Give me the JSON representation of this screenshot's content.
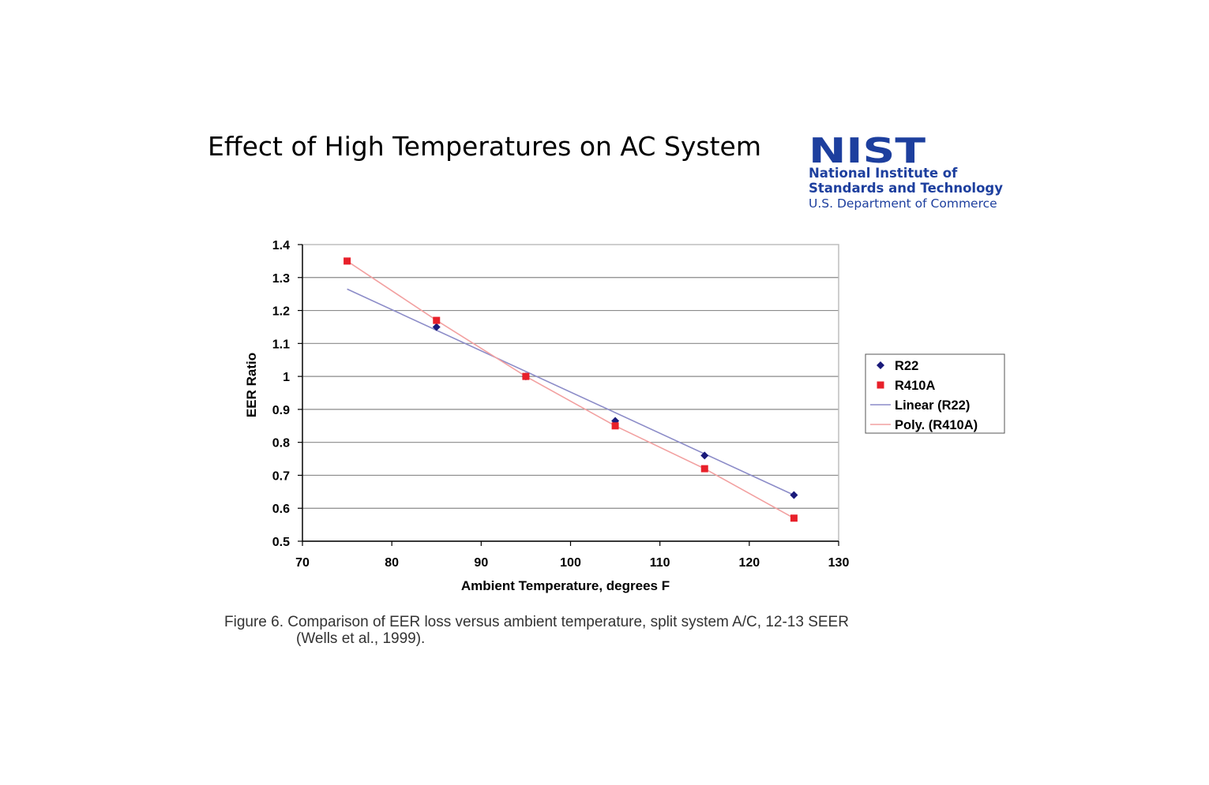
{
  "slide": {
    "title": "Effect of High Temperatures on AC System"
  },
  "logo": {
    "mark_text": "NIST",
    "line1": "National Institute of",
    "line2": "Standards and Technology",
    "line3": "U.S. Department of Commerce",
    "color": "#1d3f9e"
  },
  "figure_caption": {
    "line1": "Figure 6. Comparison of EER loss versus ambient temperature, split system A/C, 12-13 SEER",
    "line2": "(Wells et al., 1999)."
  },
  "chart_data": {
    "type": "scatter",
    "xlabel": "Ambient Temperature, degrees F",
    "ylabel": "EER Ratio",
    "xlim": [
      70,
      130
    ],
    "ylim": [
      0.5,
      1.4
    ],
    "xticks": [
      "70",
      "80",
      "90",
      "100",
      "110",
      "120",
      "130"
    ],
    "yticks": [
      "0.5",
      "0.6",
      "0.7",
      "0.8",
      "0.9",
      "1",
      "1.1",
      "1.2",
      "1.3",
      "1.4"
    ],
    "grid": "horizontal",
    "legend_position": "right",
    "series": [
      {
        "name": "R22",
        "marker": "diamond",
        "color": "#1a1a7a",
        "x": [
          85,
          95,
          105,
          115,
          125
        ],
        "y": [
          1.15,
          1.0,
          0.865,
          0.76,
          0.64
        ]
      },
      {
        "name": "R410A",
        "marker": "square",
        "color": "#e8202a",
        "x": [
          75,
          85,
          95,
          105,
          115,
          125
        ],
        "y": [
          1.35,
          1.17,
          1.0,
          0.85,
          0.72,
          0.57
        ]
      }
    ],
    "trendlines": [
      {
        "name": "Linear (R22)",
        "kind": "linear",
        "color": "#8c8cc8",
        "x": [
          75,
          125
        ],
        "y": [
          1.265,
          0.64
        ]
      },
      {
        "name": "Poly. (R410A)",
        "kind": "polynomial",
        "color": "#f2a0a0",
        "x": [
          75,
          85,
          95,
          105,
          115,
          125
        ],
        "y": [
          1.35,
          1.17,
          1.0,
          0.85,
          0.72,
          0.57
        ]
      }
    ]
  }
}
